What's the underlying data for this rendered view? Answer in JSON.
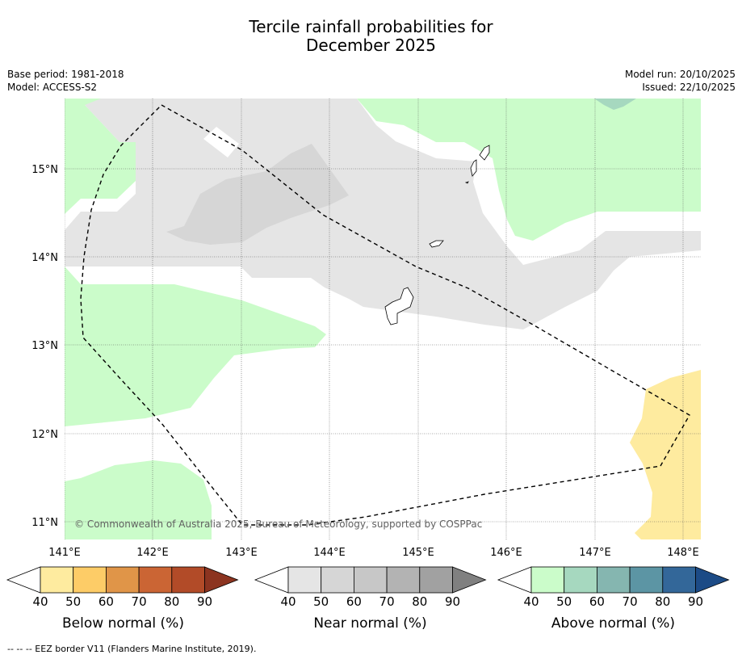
{
  "title_line1": "Tercile rainfall probabilities for",
  "title_line2": "December 2025",
  "meta_left": [
    "Base period: 1981-2018",
    "Model: ACCESS-S2"
  ],
  "meta_right": [
    "Model run: 20/10/2025",
    "Issued: 22/10/2025"
  ],
  "map": {
    "lat_labels": [
      "15°N",
      "14°N",
      "13°N",
      "12°N",
      "11°N"
    ],
    "lon_labels": [
      "141°E",
      "142°E",
      "143°E",
      "144°E",
      "145°E",
      "146°E",
      "147°E",
      "148°E"
    ],
    "copyright": "© Commonwealth of Australia 2025, Bureau of Meteorology, supported by COSPPac",
    "colors": {
      "above_light": "#cbfcca",
      "above_mid": "#a6d8bf",
      "near_light": "#e5e5e5",
      "near_mid": "#d6d6d6",
      "below_light": "#feeb9f"
    }
  },
  "colorbars": [
    {
      "title": "Below normal (%)",
      "labels": [
        "40",
        "50",
        "60",
        "70",
        "80",
        "90"
      ],
      "colors": [
        "#ffffff",
        "#feeb9f",
        "#fdcc67",
        "#e09548",
        "#cb6534",
        "#b24b28",
        "#8c3420"
      ]
    },
    {
      "title": "Near normal (%)",
      "labels": [
        "40",
        "50",
        "60",
        "70",
        "80",
        "90"
      ],
      "colors": [
        "#ffffff",
        "#e5e5e5",
        "#d6d6d6",
        "#c7c7c7",
        "#b3b3b3",
        "#a1a1a1",
        "#808080"
      ]
    },
    {
      "title": "Above normal (%)",
      "labels": [
        "40",
        "50",
        "60",
        "70",
        "80",
        "90"
      ],
      "colors": [
        "#ffffff",
        "#cbfcca",
        "#a6d8bf",
        "#85b6b0",
        "#5c95a4",
        "#336799",
        "#1c4b86"
      ]
    }
  ],
  "footnote": "--  --  -- EEZ border V11 (Flanders Marine Institute, 2019)."
}
